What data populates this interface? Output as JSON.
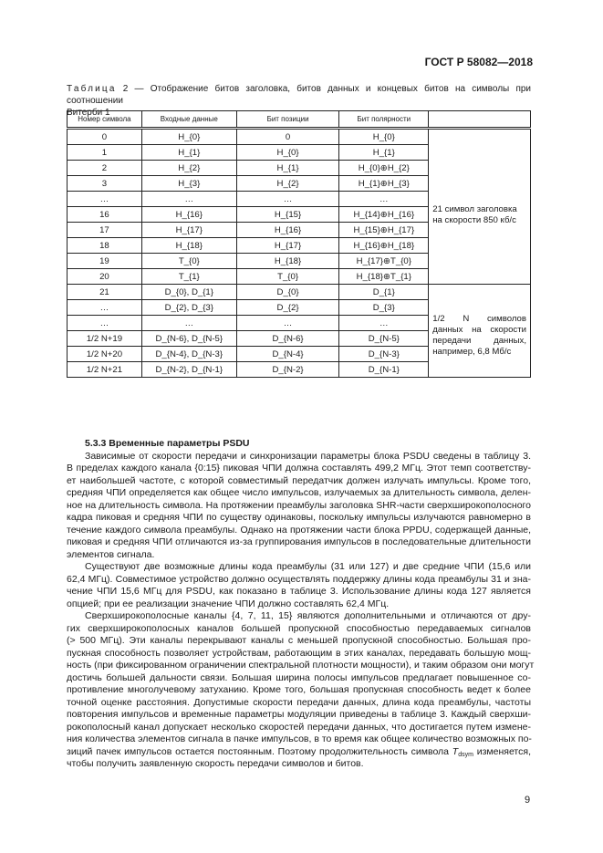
{
  "header": {
    "doc_code": "ГОСТ Р 58082—2018"
  },
  "caption": {
    "label": "Таблица",
    "line1": " 2 — Отображение битов заголовка, битов данных и концевых битов на символы при соотношении",
    "line2": "Витерби 1"
  },
  "table": {
    "columns": [
      "Номер символа",
      "Входные данные",
      "Бит позиции",
      "Бит полярности",
      ""
    ],
    "rows": [
      [
        "0",
        "H_{0}",
        "0",
        "H_{0}"
      ],
      [
        "1",
        "H_{1}",
        "H_{0}",
        "H_{1}"
      ],
      [
        "2",
        "H_{2}",
        "H_{1}",
        "H_{0}⊕H_{2}"
      ],
      [
        "3",
        "H_{3}",
        "H_{2}",
        "H_{1}⊕H_{3}"
      ],
      [
        "…",
        "…",
        "…",
        "…"
      ],
      [
        "16",
        "H_{16}",
        "H_{15}",
        "H_{14}⊕H_{16}"
      ],
      [
        "17",
        "H_{17}",
        "H_{16}",
        "H_{15}⊕H_{17}"
      ],
      [
        "18",
        "H_{18}",
        "H_{17}",
        "H_{16}⊕H_{18}"
      ],
      [
        "19",
        "T_{0}",
        "H_{18}",
        "H_{17}⊕T_{0}"
      ],
      [
        "20",
        "T_{1}",
        "T_{0}",
        "H_{18}⊕T_{1}"
      ],
      [
        "21",
        "D_{0}, D_{1}",
        "D_{0}",
        "D_{1}"
      ],
      [
        "…",
        "D_{2}, D_{3}",
        "D_{2}",
        "D_{3}"
      ],
      [
        "…",
        "…",
        "…",
        "…"
      ],
      [
        "1/2 N+19",
        "D_{N-6}, D_{N-5}",
        "D_{N-6}",
        "D_{N-5}"
      ],
      [
        "1/2 N+20",
        "D_{N-4}, D_{N-3}",
        "D_{N-4}",
        "D_{N-3}"
      ],
      [
        "1/2 N+21",
        "D_{N-2}, D_{N-1}",
        "D_{N-2}",
        "D_{N-1}"
      ]
    ],
    "group_notes": [
      "21 символ заголовка на скорости 850 кб/с",
      "1/2 N символов данных на скорости передачи данных, например, 6,8 Мб/с"
    ]
  },
  "section": {
    "heading": "5.3.3 Временные параметры PSDU",
    "paragraphs": [
      [
        "Зависимые от скорости передачи и синхронизации параметры блока PSDU сведены в таблицу 3.",
        "В пределах каждого канала {0:15} пиковая ЧПИ должна составлять 499,2 МГц. Этот темп соответству-",
        "ет наибольшей частоте, с которой совместимый передатчик должен излучать импульсы. Кроме того,",
        "средняя ЧПИ определяется как общее число импульсов, излучаемых за длительность символа, делен-",
        "ное на длительность символа. На протяжении преамбулы заголовка SHR-части сверхширокополосного",
        "кадра пиковая и средняя ЧПИ по существу одинаковы, поскольку импульсы излучаются равномерно в",
        "течение каждого символа преамбулы. Однако на протяжении части блока PPDU, содержащей данные,",
        "пиковая и средняя ЧПИ отличаются из-за группирования импульсов в последовательные длительности",
        "элементов сигнала."
      ],
      [
        "Существуют две возможные длины кода преамбулы (31 или 127) и две средние ЧПИ (15,6 или",
        "62,4 МГц). Совместимое устройство должно осуществлять поддержку длины кода преамбулы 31 и зна-",
        "чение ЧПИ 15,6 МГц для PSDU, как показано в таблице 3. Использование длины кода 127 является",
        "опцией; при ее реализации значение ЧПИ должно составлять 62,4 МГц."
      ],
      [
        "Сверхширокополосные каналы {4, 7, 11, 15} являются дополнительными и отличаются от дру-",
        "гих сверхширокополосных каналов большей пропускной способностью передаваемых сигналов",
        "(> 500 МГц). Эти каналы перекрывают каналы с меньшей пропускной способностью. Большая про-",
        "пускная способность позволяет устройствам, работающим в этих каналах, передавать большую мощ-",
        "ность (при фиксированном ограничении спектральной плотности мощности), и таким образом они могут",
        "достичь большей дальности связи. Большая ширина полосы импульсов предлагает повышенное со-",
        "противление многолучевому затуханию. Кроме того, большая пропускная способность ведет к более",
        "точной оценке расстояния. Допустимые скорости передачи данных, длина кода преамбулы, частоты",
        "повторения импульсов и временные параметры модуляции приведены в таблице 3. Каждый сверхши-",
        "рокополосный канал допускает несколько скоростей передачи данных, что достигается путем измене-",
        "ния количества элементов сигнала в пачке импульсов, в то время как общее количество возможных по-",
        "зиций пачек импульсов остается постоянным. Поэтому продолжительность символа T_{dsym} изменяется,",
        "чтобы получить заявленную скорость передачи символов и битов."
      ]
    ]
  },
  "footer": {
    "page_number": "9"
  }
}
